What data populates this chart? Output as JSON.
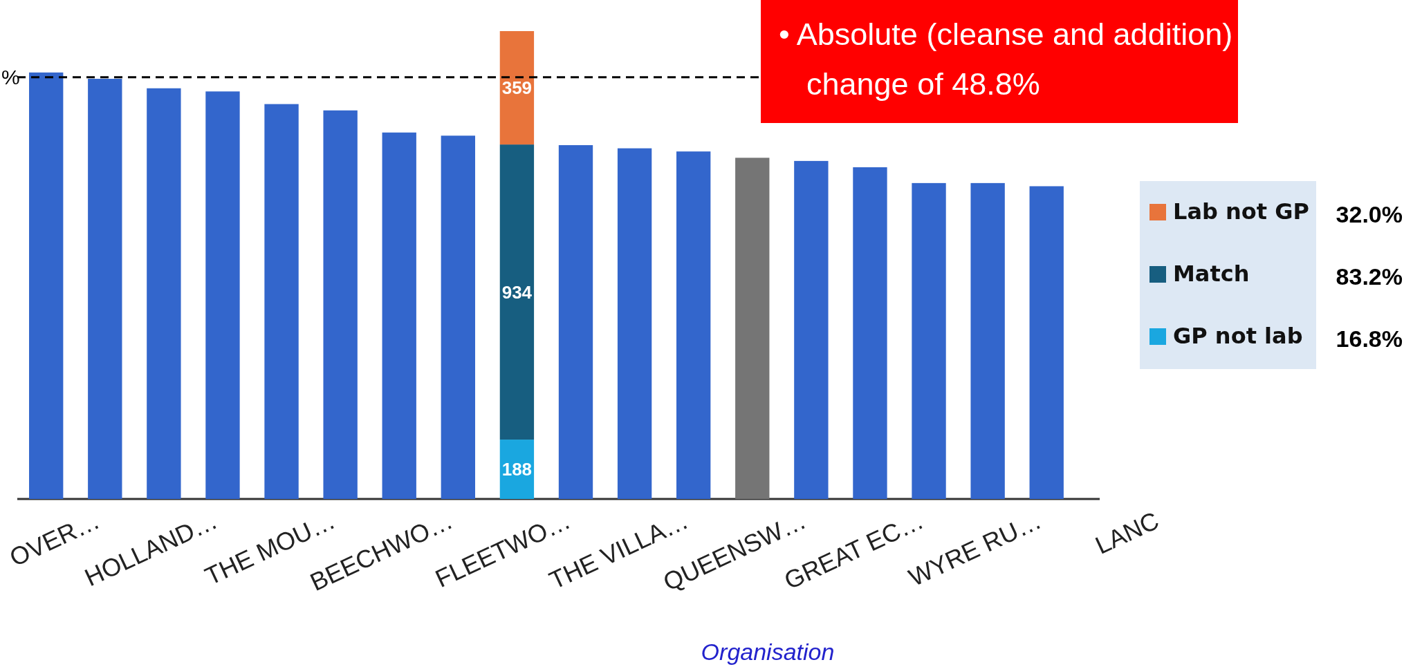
{
  "chart_data": {
    "type": "bar",
    "stacked": true,
    "xlabel": "Organisation",
    "categories": [
      "OVER…",
      null,
      "HOLLAND…",
      null,
      "THE MOU…",
      null,
      "BEECHWO…",
      null,
      "FLEETWO…",
      null,
      "THE VILLA…",
      null,
      "QUEENSW…",
      null,
      "GREAT EC…",
      null,
      "WYRE RU…",
      null,
      "LANC"
    ],
    "series": [
      {
        "colors": [
          "#3366cc",
          "#3366cc",
          "#3366cc",
          "#3366cc",
          "#3366cc",
          "#3366cc",
          "#3366cc",
          "#3366cc",
          "#3366cc",
          "#3366cc",
          "#3366cc",
          "#3366cc",
          "#757575",
          "#3366cc",
          "#3366cc",
          "#3366cc",
          "#3366cc",
          "#3366cc",
          "#3366cc"
        ],
        "values": [
          1350,
          1330,
          1300,
          1290,
          1250,
          1230,
          1160,
          1150,
          null,
          1120,
          1110,
          1100,
          1080,
          1070,
          1050,
          1000,
          1000,
          990,
          null
        ]
      },
      {
        "name": "GP not lab",
        "color": "#1aa7e0",
        "values": [
          null,
          null,
          null,
          null,
          null,
          null,
          null,
          null,
          188,
          null,
          null,
          null,
          null,
          null,
          null,
          null,
          null,
          null,
          null
        ],
        "value_labels": [
          null,
          null,
          null,
          null,
          null,
          null,
          null,
          null,
          "188",
          null,
          null,
          null,
          null,
          null,
          null,
          null,
          null,
          null,
          null
        ]
      },
      {
        "name": "Match",
        "color": "#175e80",
        "values": [
          null,
          null,
          null,
          null,
          null,
          null,
          null,
          null,
          934,
          null,
          null,
          null,
          null,
          null,
          null,
          null,
          null,
          null,
          null
        ],
        "value_labels": [
          null,
          null,
          null,
          null,
          null,
          null,
          null,
          null,
          "934",
          null,
          null,
          null,
          null,
          null,
          null,
          null,
          null,
          null,
          null
        ]
      },
      {
        "name": "Lab not GP",
        "color": "#e8743b",
        "values": [
          null,
          null,
          null,
          null,
          null,
          null,
          null,
          null,
          359,
          null,
          null,
          null,
          null,
          null,
          null,
          null,
          null,
          null,
          null
        ],
        "value_labels": [
          null,
          null,
          null,
          null,
          null,
          null,
          null,
          null,
          "359",
          null,
          null,
          null,
          null,
          null,
          null,
          null,
          null,
          null,
          null
        ]
      }
    ],
    "ref_lines": [
      {
        "axis": "y",
        "value": 1335,
        "label": "%",
        "line_style": "dashed",
        "color": "#000000"
      }
    ],
    "legend": "right",
    "annotations": [
      "• Absolute (cleanse and addition) change of 48.8%",
      "16.8%",
      "83.2%",
      "32.0%"
    ]
  }
}
